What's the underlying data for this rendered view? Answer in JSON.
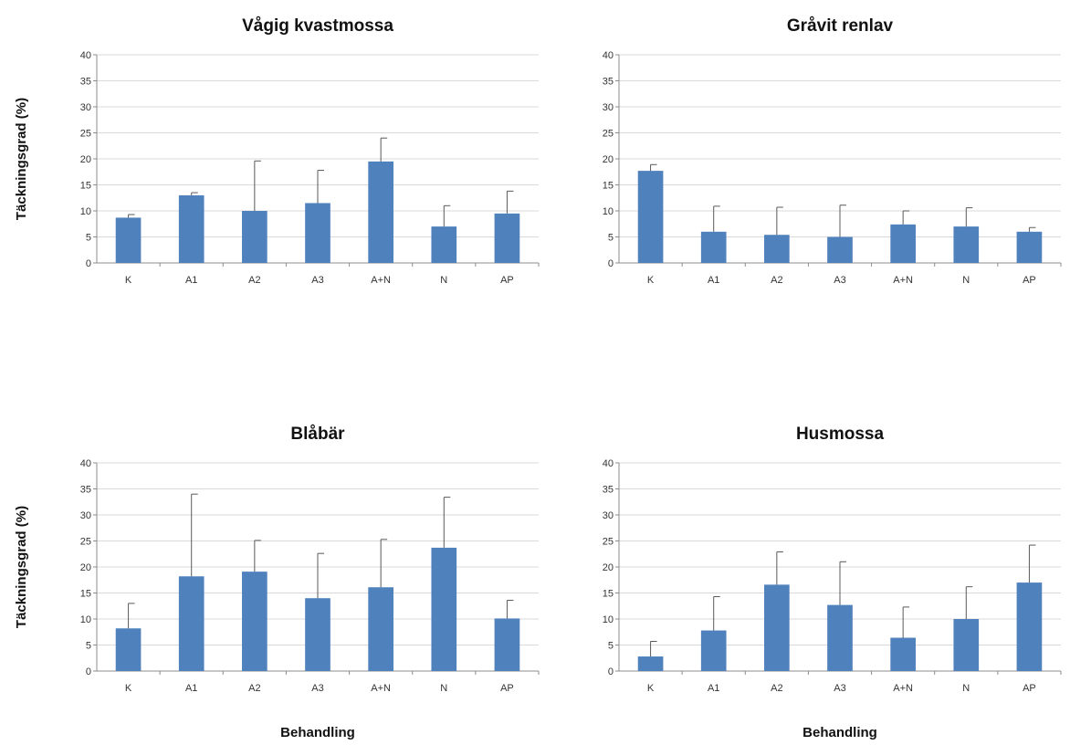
{
  "colors": {
    "bar": "#4f81bd",
    "grid": "#d9d9d9",
    "axis": "#8c8c8c"
  },
  "chart_data": [
    {
      "type": "bar",
      "title": "Vågig kvastmossa",
      "ylabel": "Täckningsgrad (%)",
      "xlabel": "",
      "ylim": [
        0,
        40
      ],
      "yticks": [
        0,
        5,
        10,
        15,
        20,
        25,
        30,
        35,
        40
      ],
      "grid": true,
      "categories": [
        "K",
        "A1",
        "A2",
        "A3",
        "A+N",
        "N",
        "AP"
      ],
      "values": [
        8.7,
        13.0,
        10.0,
        11.5,
        19.5,
        7.0,
        9.5
      ],
      "errors": [
        0.6,
        0.5,
        9.6,
        6.3,
        4.5,
        4.0,
        4.3
      ]
    },
    {
      "type": "bar",
      "title": "Gråvit renlav",
      "ylabel": "",
      "xlabel": "",
      "ylim": [
        0,
        40
      ],
      "yticks": [
        0,
        5,
        10,
        15,
        20,
        25,
        30,
        35,
        40
      ],
      "grid": true,
      "categories": [
        "K",
        "A1",
        "A2",
        "A3",
        "A+N",
        "N",
        "AP"
      ],
      "values": [
        17.7,
        6.0,
        5.4,
        5.0,
        7.4,
        7.0,
        6.0
      ],
      "errors": [
        1.2,
        4.9,
        5.3,
        6.1,
        2.6,
        3.6,
        0.8
      ]
    },
    {
      "type": "bar",
      "title": "Blåbär",
      "ylabel": "Täckningsgrad (%)",
      "xlabel": "Behandling",
      "ylim": [
        0,
        40
      ],
      "yticks": [
        0,
        5,
        10,
        15,
        20,
        25,
        30,
        35,
        40
      ],
      "grid": true,
      "categories": [
        "K",
        "A1",
        "A2",
        "A3",
        "A+N",
        "N",
        "AP"
      ],
      "values": [
        8.2,
        18.2,
        19.1,
        14.0,
        16.1,
        23.7,
        10.1
      ],
      "errors": [
        4.8,
        15.8,
        6.0,
        8.6,
        9.2,
        9.7,
        3.5
      ]
    },
    {
      "type": "bar",
      "title": "Husmossa",
      "ylabel": "",
      "xlabel": "Behandling",
      "ylim": [
        0,
        40
      ],
      "yticks": [
        0,
        5,
        10,
        15,
        20,
        25,
        30,
        35,
        40
      ],
      "grid": true,
      "categories": [
        "K",
        "A1",
        "A2",
        "A3",
        "A+N",
        "N",
        "AP"
      ],
      "values": [
        2.8,
        7.8,
        16.6,
        12.7,
        6.4,
        10.0,
        17.0
      ],
      "errors": [
        2.9,
        6.5,
        6.3,
        8.3,
        5.9,
        6.2,
        7.2
      ]
    }
  ]
}
